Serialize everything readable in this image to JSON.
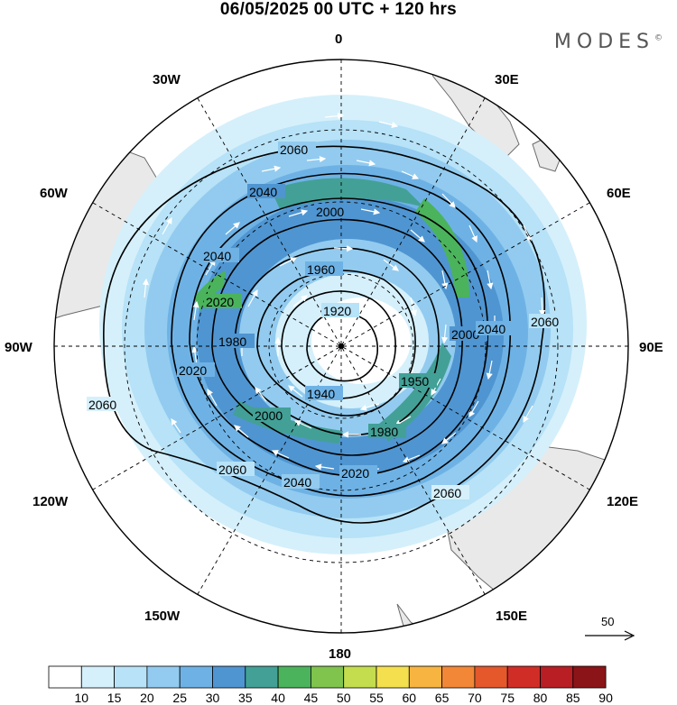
{
  "header": {
    "title": "06/05/2025  00 UTC  + 120 hrs",
    "brand": "MODES",
    "brand_mark": "©"
  },
  "map": {
    "projection": "polar-stereographic-south",
    "longitude_labels": [
      "0",
      "30E",
      "60E",
      "90E",
      "120E",
      "150E",
      "180",
      "150W",
      "120W",
      "90W",
      "60W",
      "30W"
    ],
    "contour_labels": [
      "1920",
      "1940",
      "1950",
      "1960",
      "1980",
      "2000",
      "2020",
      "2040",
      "2060"
    ],
    "wind_reference": {
      "value": "50",
      "arrow_icon": "reference-vector-arrow"
    },
    "colors": {
      "land": "#e9e9e9",
      "coast": "#6b6b6b",
      "contour": "#000000",
      "vector": "#ffffff"
    }
  },
  "colorbar": {
    "labels": [
      "10",
      "15",
      "20",
      "25",
      "30",
      "35",
      "40",
      "45",
      "50",
      "55",
      "60",
      "65",
      "70",
      "75",
      "80",
      "85",
      "90"
    ],
    "colors": [
      "#ffffff",
      "#d5f0fb",
      "#b7e2f7",
      "#92cbef",
      "#6eb2e5",
      "#4f95d1",
      "#43a096",
      "#4bb35c",
      "#80c34d",
      "#c4dd4e",
      "#f4e04e",
      "#f8b441",
      "#f28737",
      "#e4582c",
      "#d12d27",
      "#b81e24",
      "#8b1418"
    ]
  }
}
